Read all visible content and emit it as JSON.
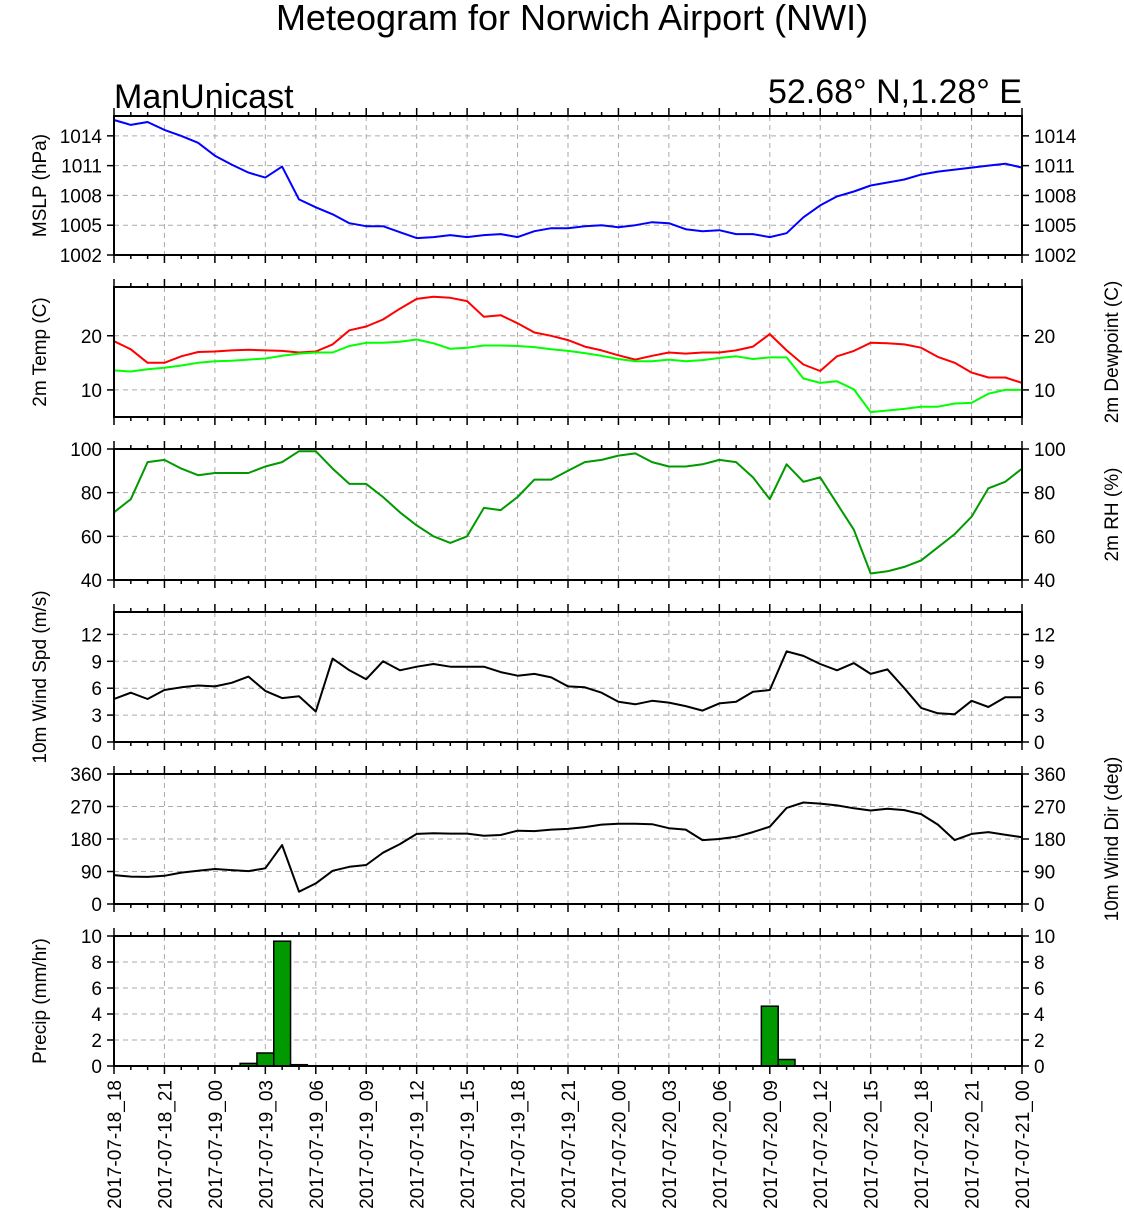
{
  "title": "Meteogram for Norwich Airport (NWI)",
  "model": "ManUnicast",
  "location": "52.68° N,1.28° E",
  "colors": {
    "mslp": "#0000ff",
    "temp": "#ff0000",
    "dewpoint": "#00ff00",
    "rh": "#009900",
    "wind": "#000000",
    "precip_fill": "#009900",
    "grid": "#aaaaaa"
  },
  "chart_data": {
    "type": "line",
    "time_axis": {
      "start": "2017-07-18_18",
      "step_hours": 1,
      "count": 55,
      "tick_labels": [
        "2017-07-18_18",
        "2017-07-18_21",
        "2017-07-19_00",
        "2017-07-19_03",
        "2017-07-19_06",
        "2017-07-19_09",
        "2017-07-19_12",
        "2017-07-19_15",
        "2017-07-19_18",
        "2017-07-19_21",
        "2017-07-20_00",
        "2017-07-20_03",
        "2017-07-20_06",
        "2017-07-20_09",
        "2017-07-20_12",
        "2017-07-20_15",
        "2017-07-20_18",
        "2017-07-20_21",
        "2017-07-21_00"
      ],
      "grid": true
    },
    "panels": [
      {
        "key": "mslp",
        "type": "line",
        "ylabel_left": "MSLP (hPa)",
        "ylabel_right": "",
        "ylim": [
          1002,
          1016
        ],
        "ticks_left": [
          1002,
          1005,
          1008,
          1011,
          1014
        ],
        "ticks_right": [
          1002,
          1005,
          1008,
          1011,
          1014
        ],
        "series": [
          {
            "color_key": "mslp",
            "values": [
              1015.6,
              1015.1,
              1015.4,
              1014.6,
              1014.0,
              1013.3,
              1012.0,
              1011.1,
              1010.3,
              1009.8,
              1010.9,
              1007.6,
              1006.8,
              1006.1,
              1005.2,
              1004.9,
              1004.9,
              1004.3,
              1003.7,
              1003.8,
              1004.0,
              1003.8,
              1004.0,
              1004.1,
              1003.8,
              1004.4,
              1004.7,
              1004.7,
              1004.9,
              1005.0,
              1004.8,
              1005.0,
              1005.3,
              1005.2,
              1004.6,
              1004.4,
              1004.5,
              1004.1,
              1004.1,
              1003.8,
              1004.2,
              1005.8,
              1007.0,
              1007.9,
              1008.4,
              1009.0,
              1009.3,
              1009.6,
              1010.1,
              1010.4,
              1010.6,
              1010.8,
              1011.0,
              1011.2,
              1010.8
            ]
          }
        ]
      },
      {
        "key": "temp",
        "type": "line",
        "ylabel_left": "2m Temp (C)",
        "ylabel_right": "2m Dewpoint (C)",
        "ylim": [
          5,
          29
        ],
        "ticks_left": [
          10,
          20
        ],
        "ticks_right": [
          10,
          20
        ],
        "series": [
          {
            "color_key": "temp",
            "values": [
              19.0,
              17.5,
              15.0,
              15.0,
              16.2,
              17.0,
              17.1,
              17.3,
              17.4,
              17.3,
              17.2,
              16.9,
              17.1,
              18.4,
              21.0,
              21.7,
              23.0,
              25.0,
              26.8,
              27.2,
              27.0,
              26.4,
              23.5,
              23.8,
              22.3,
              20.6,
              20.0,
              19.2,
              18.0,
              17.3,
              16.4,
              15.6,
              16.3,
              16.9,
              16.7,
              16.9,
              16.9,
              17.3,
              18.0,
              20.3,
              17.3,
              14.7,
              13.5,
              16.2,
              17.2,
              18.7,
              18.6,
              18.4,
              17.8,
              16.1,
              15.0,
              13.2,
              12.3,
              12.3,
              11.3
            ]
          },
          {
            "color_key": "dewpoint",
            "values": [
              13.6,
              13.4,
              13.8,
              14.1,
              14.5,
              15.0,
              15.3,
              15.4,
              15.6,
              15.8,
              16.3,
              16.7,
              16.9,
              16.9,
              18.1,
              18.7,
              18.7,
              18.9,
              19.3,
              18.6,
              17.6,
              17.8,
              18.2,
              18.2,
              18.1,
              17.9,
              17.5,
              17.2,
              16.8,
              16.3,
              15.7,
              15.3,
              15.3,
              15.6,
              15.3,
              15.5,
              15.9,
              16.2,
              15.7,
              16.0,
              16.0,
              12.1,
              11.3,
              11.6,
              10.1,
              5.9,
              6.2,
              6.5,
              6.9,
              6.9,
              7.5,
              7.6,
              9.3,
              10.0,
              10.0
            ]
          }
        ]
      },
      {
        "key": "rh",
        "type": "line",
        "ylabel_left": "",
        "ylabel_right": "2m RH (%)",
        "ylim": [
          40,
          100
        ],
        "ticks_left": [
          40,
          60,
          80,
          100
        ],
        "ticks_right": [
          40,
          60,
          80,
          100
        ],
        "series": [
          {
            "color_key": "rh",
            "values": [
              71,
              77,
              94,
              95,
              91,
              88,
              89,
              89,
              89,
              92,
              94,
              99,
              99,
              91,
              84,
              84,
              78,
              71,
              65,
              60,
              57,
              60,
              73,
              72,
              78,
              86,
              86,
              90,
              94,
              95,
              97,
              98,
              94,
              92,
              92,
              93,
              95,
              94,
              87,
              77,
              93,
              85,
              87,
              75,
              63,
              43,
              44,
              46,
              49,
              55,
              61,
              69,
              82,
              85,
              91
            ]
          }
        ]
      },
      {
        "key": "wspd",
        "type": "line",
        "ylabel_left": "10m Wind Spd (m/s)",
        "ylabel_right": "",
        "ylim": [
          0,
          14.5
        ],
        "ticks_left": [
          0,
          3,
          6,
          9,
          12
        ],
        "ticks_right": [
          0,
          3,
          6,
          9,
          12
        ],
        "series": [
          {
            "color_key": "wind",
            "values": [
              4.8,
              5.5,
              4.8,
              5.8,
              6.1,
              6.3,
              6.2,
              6.6,
              7.3,
              5.7,
              4.9,
              5.1,
              3.4,
              9.3,
              8.0,
              7.0,
              9.0,
              8.0,
              8.4,
              8.7,
              8.4,
              8.4,
              8.4,
              7.8,
              7.4,
              7.6,
              7.2,
              6.2,
              6.1,
              5.5,
              4.5,
              4.2,
              4.6,
              4.4,
              4.0,
              3.5,
              4.3,
              4.5,
              5.6,
              5.8,
              10.1,
              9.6,
              8.7,
              8.0,
              8.8,
              7.6,
              8.1,
              6.0,
              3.8,
              3.2,
              3.1,
              4.6,
              3.9,
              5.0,
              5.0
            ]
          }
        ]
      },
      {
        "key": "wdir",
        "type": "line",
        "ylabel_left": "",
        "ylabel_right": "10m Wind Dir (deg)",
        "ylim": [
          0,
          360
        ],
        "ticks_left": [
          0,
          90,
          180,
          270,
          360
        ],
        "ticks_right": [
          0,
          90,
          180,
          270,
          360
        ],
        "series": [
          {
            "color_key": "wind",
            "values": [
              80,
              76,
              75,
              78,
              87,
              92,
              97,
              94,
              91,
              99,
              163,
              34,
              57,
              92,
              103,
              108,
              142,
              166,
              194,
              196,
              195,
              195,
              189,
              191,
              203,
              202,
              206,
              208,
              213,
              220,
              222,
              222,
              221,
              210,
              206,
              177,
              180,
              186,
              199,
              214,
              266,
              281,
              278,
              273,
              265,
              259,
              264,
              260,
              249,
              220,
              177,
              194,
              199,
              192,
              185
            ]
          }
        ]
      },
      {
        "key": "precip",
        "type": "bar",
        "ylabel_left": "Precip (mm/hr)",
        "ylabel_right": "",
        "ylim": [
          0,
          10
        ],
        "ticks_left": [
          0,
          2,
          4,
          6,
          8,
          10
        ],
        "ticks_right": [
          0,
          2,
          4,
          6,
          8,
          10
        ],
        "series": [
          {
            "color_key": "precip_fill",
            "values": [
              0,
              0,
              0,
              0,
              0,
              0,
              0,
              0,
              0.2,
              1.0,
              9.6,
              0.1,
              0,
              0,
              0,
              0,
              0,
              0,
              0,
              0,
              0,
              0,
              0,
              0,
              0,
              0,
              0,
              0,
              0,
              0,
              0,
              0,
              0,
              0,
              0,
              0,
              0,
              0,
              0,
              4.6,
              0.5,
              0,
              0,
              0,
              0,
              0,
              0,
              0,
              0,
              0,
              0,
              0,
              0,
              0,
              0
            ]
          }
        ]
      }
    ]
  }
}
